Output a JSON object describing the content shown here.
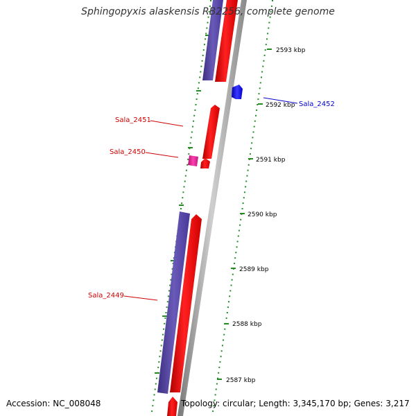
{
  "title": "Sphingopyxis alaskensis RB2256, complete genome",
  "footer": {
    "accession": "Accession: NC_008048",
    "topology": "Topology: circular; Length: 3,345,170 bp; Genes: 3,217"
  },
  "ticks": [
    "2593 kbp",
    "2592 kbp",
    "2591 kbp",
    "2590 kbp",
    "2589 kbp",
    "2588 kbp",
    "2587 kbp"
  ],
  "genes": [
    {
      "name": "Sala_2452",
      "strand": "+",
      "color": "#0000ff"
    },
    {
      "name": "Sala_2451",
      "strand": "-",
      "color": "#cc0000"
    },
    {
      "name": "Sala_2450",
      "strand": "-",
      "color": "#cc0000"
    },
    {
      "name": "Sala_2449",
      "strand": "-",
      "color": "#cc0000"
    }
  ],
  "colors": {
    "backbone": "#999999",
    "gene_forward": "#0000ff",
    "gene_reverse": "#ff0000",
    "cds_feature": "#5a4aa0",
    "rna_feature": "#e0208a",
    "tick_marks": "#228b22"
  }
}
